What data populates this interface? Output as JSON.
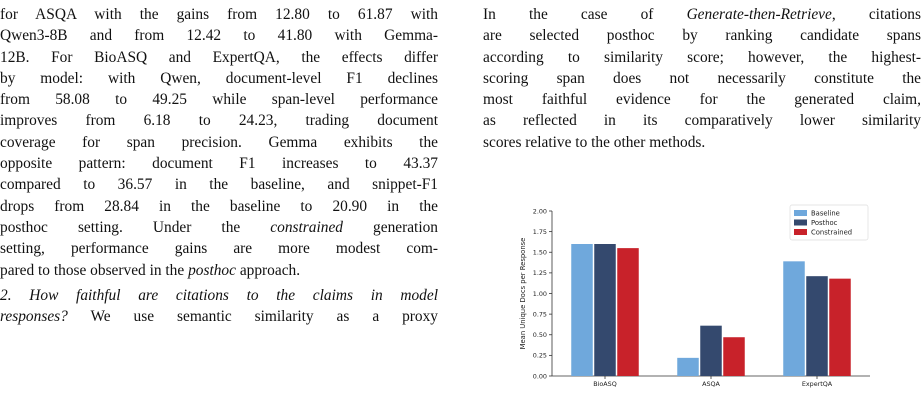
{
  "left": {
    "lines": [
      "for ASQA with the gains from 12.80 to 61.87 with",
      "Qwen3-8B and from 12.42 to 41.80 with Gemma-",
      "12B. For BioASQ and ExpertQA, the effects differ",
      "by model: with Qwen, document-level F1 declines",
      "from 58.08 to 49.25 while span-level performance",
      "improves from 6.18 to 24.23, trading document",
      "coverage for span precision. Gemma exhibits the",
      "opposite pattern: document F1 increases to 43.37",
      "compared to 36.57 in the baseline, and snippet-F1",
      "drops from 28.84 in the baseline to 20.90 in the",
      "posthoc setting. Under the",
      "generation",
      "constrained",
      "setting, performance gains are more modest com-",
      "pared to those observed in the",
      "posthoc",
      "approach."
    ],
    "q2_line1": "2. How faithful are citations to the claims in model",
    "q2_line2_it": "responses?",
    "q2_line2_rest": " We use semantic similarity as a proxy"
  },
  "right": {
    "l1_pre": "In the case of ",
    "l1_it": "Generate-then-Retrieve",
    "l1_post": ", citations",
    "l2": "are selected posthoc by ranking candidate spans",
    "l3": "according to similarity score; however, the highest-",
    "l4": "scoring span does not necessarily constitute the",
    "l5": "most faithful evidence for the generated claim,",
    "l6": "as reflected in its comparatively lower similarity",
    "l7": "scores relative to the other methods."
  },
  "chart_data": {
    "type": "bar",
    "categories": [
      "BioASQ",
      "ASQA",
      "ExpertQA"
    ],
    "series": [
      {
        "name": "Baseline",
        "values": [
          1.6,
          0.22,
          1.39
        ],
        "color": "#6fa8dc"
      },
      {
        "name": "Posthoc",
        "values": [
          1.6,
          0.61,
          1.21
        ],
        "color": "#34496e"
      },
      {
        "name": "Constrained",
        "values": [
          1.55,
          0.47,
          1.18
        ],
        "color": "#c8222a"
      }
    ],
    "ylabel": "Mean Unique Docs per Response",
    "xlabel": "",
    "ylim": [
      0,
      2.0
    ],
    "yticks": [
      "0.00",
      "0.25",
      "0.50",
      "0.75",
      "1.00",
      "1.25",
      "1.50",
      "1.75",
      "2.00"
    ],
    "legend_position": "top-right",
    "grid": false
  }
}
